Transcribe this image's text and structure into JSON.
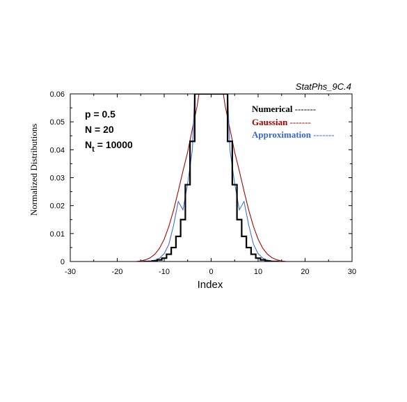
{
  "chart_data": {
    "type": "line",
    "figure_tag": "StatPhs_9C.4",
    "xlabel": "Index",
    "ylabel": "Normalized Distributions",
    "xlim": [
      -30,
      30
    ],
    "ylim": [
      0,
      0.06
    ],
    "x_ticks": [
      -30,
      -20,
      -10,
      0,
      10,
      20,
      30
    ],
    "y_ticks": [
      0,
      0.01,
      0.02,
      0.03,
      0.04,
      0.05,
      0.06
    ],
    "y_tick_labels": [
      "0",
      "0.01",
      "0.02",
      "0.03",
      "0.04",
      "0.05",
      "0.06"
    ],
    "x_tick_labels": [
      "-30",
      "-20",
      "-10",
      "0",
      "10",
      "20",
      "30"
    ],
    "annotations": {
      "p": "p = 0.5",
      "n": "N = 20",
      "nt_base": "N",
      "nt_sub": "t",
      "nt_value": "= 10000"
    },
    "legend": [
      {
        "label": "Numerical",
        "line": "-------",
        "color": "#000000"
      },
      {
        "label": "Gaussian",
        "line": "-------",
        "color": "#aa0000"
      },
      {
        "label": "Approximation",
        "line": "-------",
        "color": "#3366cc"
      }
    ],
    "colors": {
      "numerical": "#000000",
      "gaussian": "#aa0000",
      "approximation": "#3a6fd8"
    },
    "series": [
      {
        "name": "Numerical",
        "step": true,
        "x": [
          -14,
          -13,
          -12,
          -11,
          -10,
          -9,
          -8,
          -7,
          -6,
          -5,
          -4,
          -3,
          3,
          4,
          5,
          6,
          7,
          8,
          9,
          10,
          11,
          12,
          13,
          14
        ],
        "y": [
          0,
          0,
          0.0002,
          0.0006,
          0.0012,
          0.0026,
          0.005,
          0.009,
          0.015,
          0.0275,
          0.043,
          0.06,
          0.06,
          0.043,
          0.0275,
          0.015,
          0.009,
          0.005,
          0.0026,
          0.0012,
          0.0006,
          0.0002,
          0,
          0
        ]
      },
      {
        "name": "Gaussian",
        "x": [
          -16,
          -15,
          -14,
          -13,
          -12,
          -11,
          -10,
          -9,
          -8,
          -7,
          -6,
          -5,
          -4,
          -3,
          -2.6,
          2.6,
          3,
          4,
          5,
          6,
          7,
          8,
          9,
          10,
          11,
          12,
          13,
          14,
          15,
          16
        ],
        "y": [
          0,
          0.0002,
          0.0006,
          0.0013,
          0.0026,
          0.0047,
          0.008,
          0.0126,
          0.0184,
          0.0252,
          0.0324,
          0.0392,
          0.0475,
          0.0555,
          0.06,
          0.06,
          0.0555,
          0.0475,
          0.0392,
          0.0324,
          0.0252,
          0.0184,
          0.0126,
          0.008,
          0.0047,
          0.0026,
          0.0013,
          0.0006,
          0.0002,
          0
        ]
      },
      {
        "name": "Approximation",
        "x": [
          -15,
          -13,
          -12,
          -11,
          -10,
          -9,
          -8,
          -7,
          -6,
          -5,
          -4,
          -3.5,
          3.5,
          4,
          5,
          6,
          7,
          8,
          9,
          10,
          11,
          12,
          13,
          15
        ],
        "y": [
          0,
          0.0002,
          0.0005,
          0.0012,
          0.0028,
          0.0062,
          0.013,
          0.0215,
          0.0185,
          0.028,
          0.04,
          0.06,
          0.06,
          0.04,
          0.028,
          0.0185,
          0.0215,
          0.013,
          0.0062,
          0.0028,
          0.0012,
          0.0005,
          0.0002,
          0
        ]
      }
    ]
  }
}
